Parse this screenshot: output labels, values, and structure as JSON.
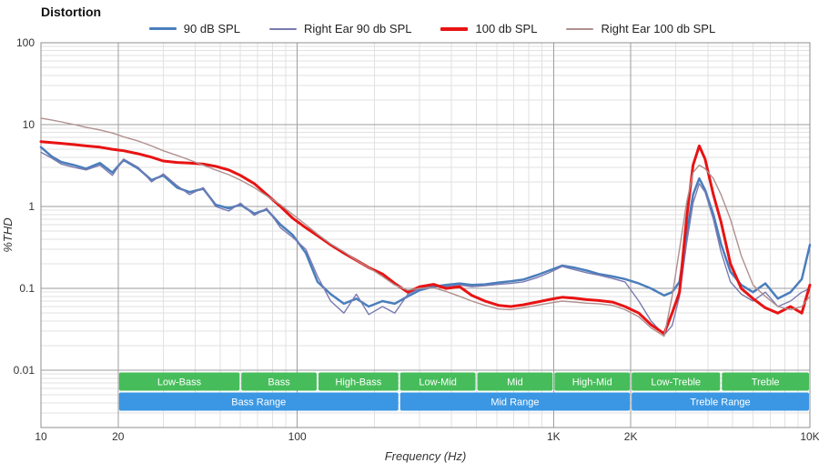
{
  "page": {
    "title": "Distortion"
  },
  "legend": {
    "items": [
      {
        "label": "90 dB SPL",
        "color": "#4a7ebc",
        "swatch_height": 3
      },
      {
        "label": "Right Ear 90 db SPL",
        "color": "#7a7ab0",
        "swatch_height": 2
      },
      {
        "label": "100 db SPL",
        "color": "#e81313",
        "swatch_height": 4
      },
      {
        "label": "Right Ear 100 db SPL",
        "color": "#b08f8f",
        "swatch_height": 2
      }
    ]
  },
  "chart_data": {
    "type": "line",
    "title": "Distortion",
    "xlabel": "Frequency (Hz)",
    "ylabel": "%THD",
    "x_scale": "log",
    "y_scale": "log",
    "grid": "on",
    "legend_position": "top",
    "xlim": [
      10,
      10000
    ],
    "ylim": [
      0.002,
      100
    ],
    "x_ticks": [
      {
        "value": 10,
        "label": "10"
      },
      {
        "value": 20,
        "label": "20"
      },
      {
        "value": 100,
        "label": "100"
      },
      {
        "value": 1000,
        "label": "1K"
      },
      {
        "value": 2000,
        "label": "2K"
      },
      {
        "value": 10000,
        "label": "10K"
      }
    ],
    "y_ticks": [
      {
        "value": 100,
        "label": "100"
      },
      {
        "value": 10,
        "label": "10"
      },
      {
        "value": 1,
        "label": "1"
      },
      {
        "value": 0.1,
        "label": "0.1"
      },
      {
        "value": 0.01,
        "label": "0.01"
      }
    ],
    "x": [
      10,
      11,
      12,
      13.5,
      15,
      17,
      19,
      21,
      24,
      27,
      30,
      34,
      38,
      43,
      48,
      54,
      60,
      68,
      76,
      86,
      96,
      108,
      120,
      135,
      152,
      170,
      190,
      215,
      240,
      270,
      300,
      340,
      380,
      430,
      480,
      540,
      610,
      680,
      760,
      860,
      960,
      1080,
      1200,
      1350,
      1500,
      1700,
      1900,
      2150,
      2400,
      2700,
      2900,
      3100,
      3300,
      3500,
      3700,
      3900,
      4200,
      4500,
      4900,
      5400,
      6000,
      6700,
      7500,
      8400,
      9300,
      10000
    ],
    "series": [
      {
        "name": "90 dB SPL",
        "color": "#4a7ebc",
        "line_width": 2.5,
        "values": [
          5.3,
          4.1,
          3.5,
          3.2,
          2.9,
          3.4,
          2.6,
          3.7,
          2.9,
          2.1,
          2.4,
          1.7,
          1.5,
          1.65,
          1.05,
          0.95,
          1.05,
          0.82,
          0.92,
          0.6,
          0.45,
          0.27,
          0.12,
          0.085,
          0.065,
          0.075,
          0.06,
          0.07,
          0.065,
          0.08,
          0.095,
          0.105,
          0.11,
          0.115,
          0.11,
          0.112,
          0.118,
          0.122,
          0.128,
          0.145,
          0.165,
          0.19,
          0.18,
          0.165,
          0.15,
          0.14,
          0.13,
          0.115,
          0.1,
          0.082,
          0.09,
          0.12,
          0.45,
          1.4,
          2.2,
          1.6,
          0.8,
          0.35,
          0.16,
          0.11,
          0.09,
          0.115,
          0.075,
          0.09,
          0.13,
          0.34
        ]
      },
      {
        "name": "Right Ear 90 db SPL",
        "color": "#7a7ab0",
        "line_width": 1.4,
        "values": [
          4.6,
          3.9,
          3.3,
          3.0,
          2.8,
          3.2,
          2.4,
          3.8,
          3.0,
          2.0,
          2.5,
          1.8,
          1.4,
          1.7,
          1.0,
          0.88,
          1.1,
          0.78,
          0.95,
          0.55,
          0.42,
          0.3,
          0.14,
          0.07,
          0.05,
          0.085,
          0.048,
          0.06,
          0.05,
          0.085,
          0.1,
          0.11,
          0.105,
          0.11,
          0.105,
          0.108,
          0.112,
          0.115,
          0.12,
          0.135,
          0.155,
          0.185,
          0.17,
          0.155,
          0.145,
          0.132,
          0.12,
          0.07,
          0.04,
          0.027,
          0.035,
          0.08,
          0.35,
          1.1,
          1.9,
          1.5,
          0.7,
          0.28,
          0.12,
          0.085,
          0.07,
          0.09,
          0.06,
          0.07,
          0.09,
          0.1
        ]
      },
      {
        "name": "100 db SPL",
        "color": "#e81313",
        "line_width": 3,
        "values": [
          6.2,
          6.05,
          5.9,
          5.7,
          5.5,
          5.3,
          5.0,
          4.8,
          4.4,
          4.0,
          3.6,
          3.45,
          3.4,
          3.3,
          3.1,
          2.8,
          2.4,
          1.9,
          1.4,
          1.0,
          0.72,
          0.55,
          0.44,
          0.34,
          0.27,
          0.22,
          0.18,
          0.15,
          0.115,
          0.09,
          0.105,
          0.112,
          0.1,
          0.105,
          0.082,
          0.07,
          0.062,
          0.06,
          0.063,
          0.068,
          0.073,
          0.078,
          0.076,
          0.073,
          0.071,
          0.068,
          0.06,
          0.05,
          0.036,
          0.028,
          0.05,
          0.09,
          0.7,
          3.2,
          5.5,
          3.8,
          1.4,
          0.65,
          0.2,
          0.1,
          0.075,
          0.058,
          0.05,
          0.06,
          0.05,
          0.11
        ]
      },
      {
        "name": "Right Ear 100 db SPL",
        "color": "#b08f8f",
        "line_width": 1.4,
        "values": [
          12.0,
          11.4,
          10.8,
          10.0,
          9.3,
          8.6,
          7.9,
          7.1,
          6.3,
          5.5,
          4.8,
          4.2,
          3.7,
          3.2,
          2.8,
          2.45,
          2.1,
          1.7,
          1.35,
          1.05,
          0.8,
          0.6,
          0.46,
          0.35,
          0.28,
          0.22,
          0.18,
          0.14,
          0.11,
          0.095,
          0.1,
          0.102,
          0.092,
          0.08,
          0.07,
          0.062,
          0.056,
          0.055,
          0.058,
          0.062,
          0.066,
          0.07,
          0.068,
          0.066,
          0.065,
          0.062,
          0.055,
          0.045,
          0.033,
          0.026,
          0.08,
          0.3,
          1.1,
          2.6,
          3.2,
          2.9,
          2.2,
          1.4,
          0.7,
          0.25,
          0.11,
          0.08,
          0.06,
          0.055,
          0.06,
          0.08
        ]
      }
    ],
    "range_bands": {
      "sub_color": "#46bd5a",
      "main_color": "#3b97e3",
      "sub": [
        {
          "label": "Low-Bass",
          "from": 20,
          "to": 60
        },
        {
          "label": "Bass",
          "from": 60,
          "to": 120
        },
        {
          "label": "High-Bass",
          "from": 120,
          "to": 250
        },
        {
          "label": "Low-Mid",
          "from": 250,
          "to": 500
        },
        {
          "label": "Mid",
          "from": 500,
          "to": 1000
        },
        {
          "label": "High-Mid",
          "from": 1000,
          "to": 2000
        },
        {
          "label": "Low-Treble",
          "from": 2000,
          "to": 4500
        },
        {
          "label": "Treble",
          "from": 4500,
          "to": 10000
        }
      ],
      "main": [
        {
          "label": "Bass Range",
          "from": 20,
          "to": 250
        },
        {
          "label": "Mid Range",
          "from": 250,
          "to": 2000
        },
        {
          "label": "Treble Range",
          "from": 2000,
          "to": 10000
        }
      ]
    },
    "colors": {
      "grid_minor": "#e1e1e1",
      "grid_major": "#9e9e9e",
      "border": "#8f8f8f",
      "tick_text": "#333333",
      "band_text": "#ffffff"
    }
  }
}
